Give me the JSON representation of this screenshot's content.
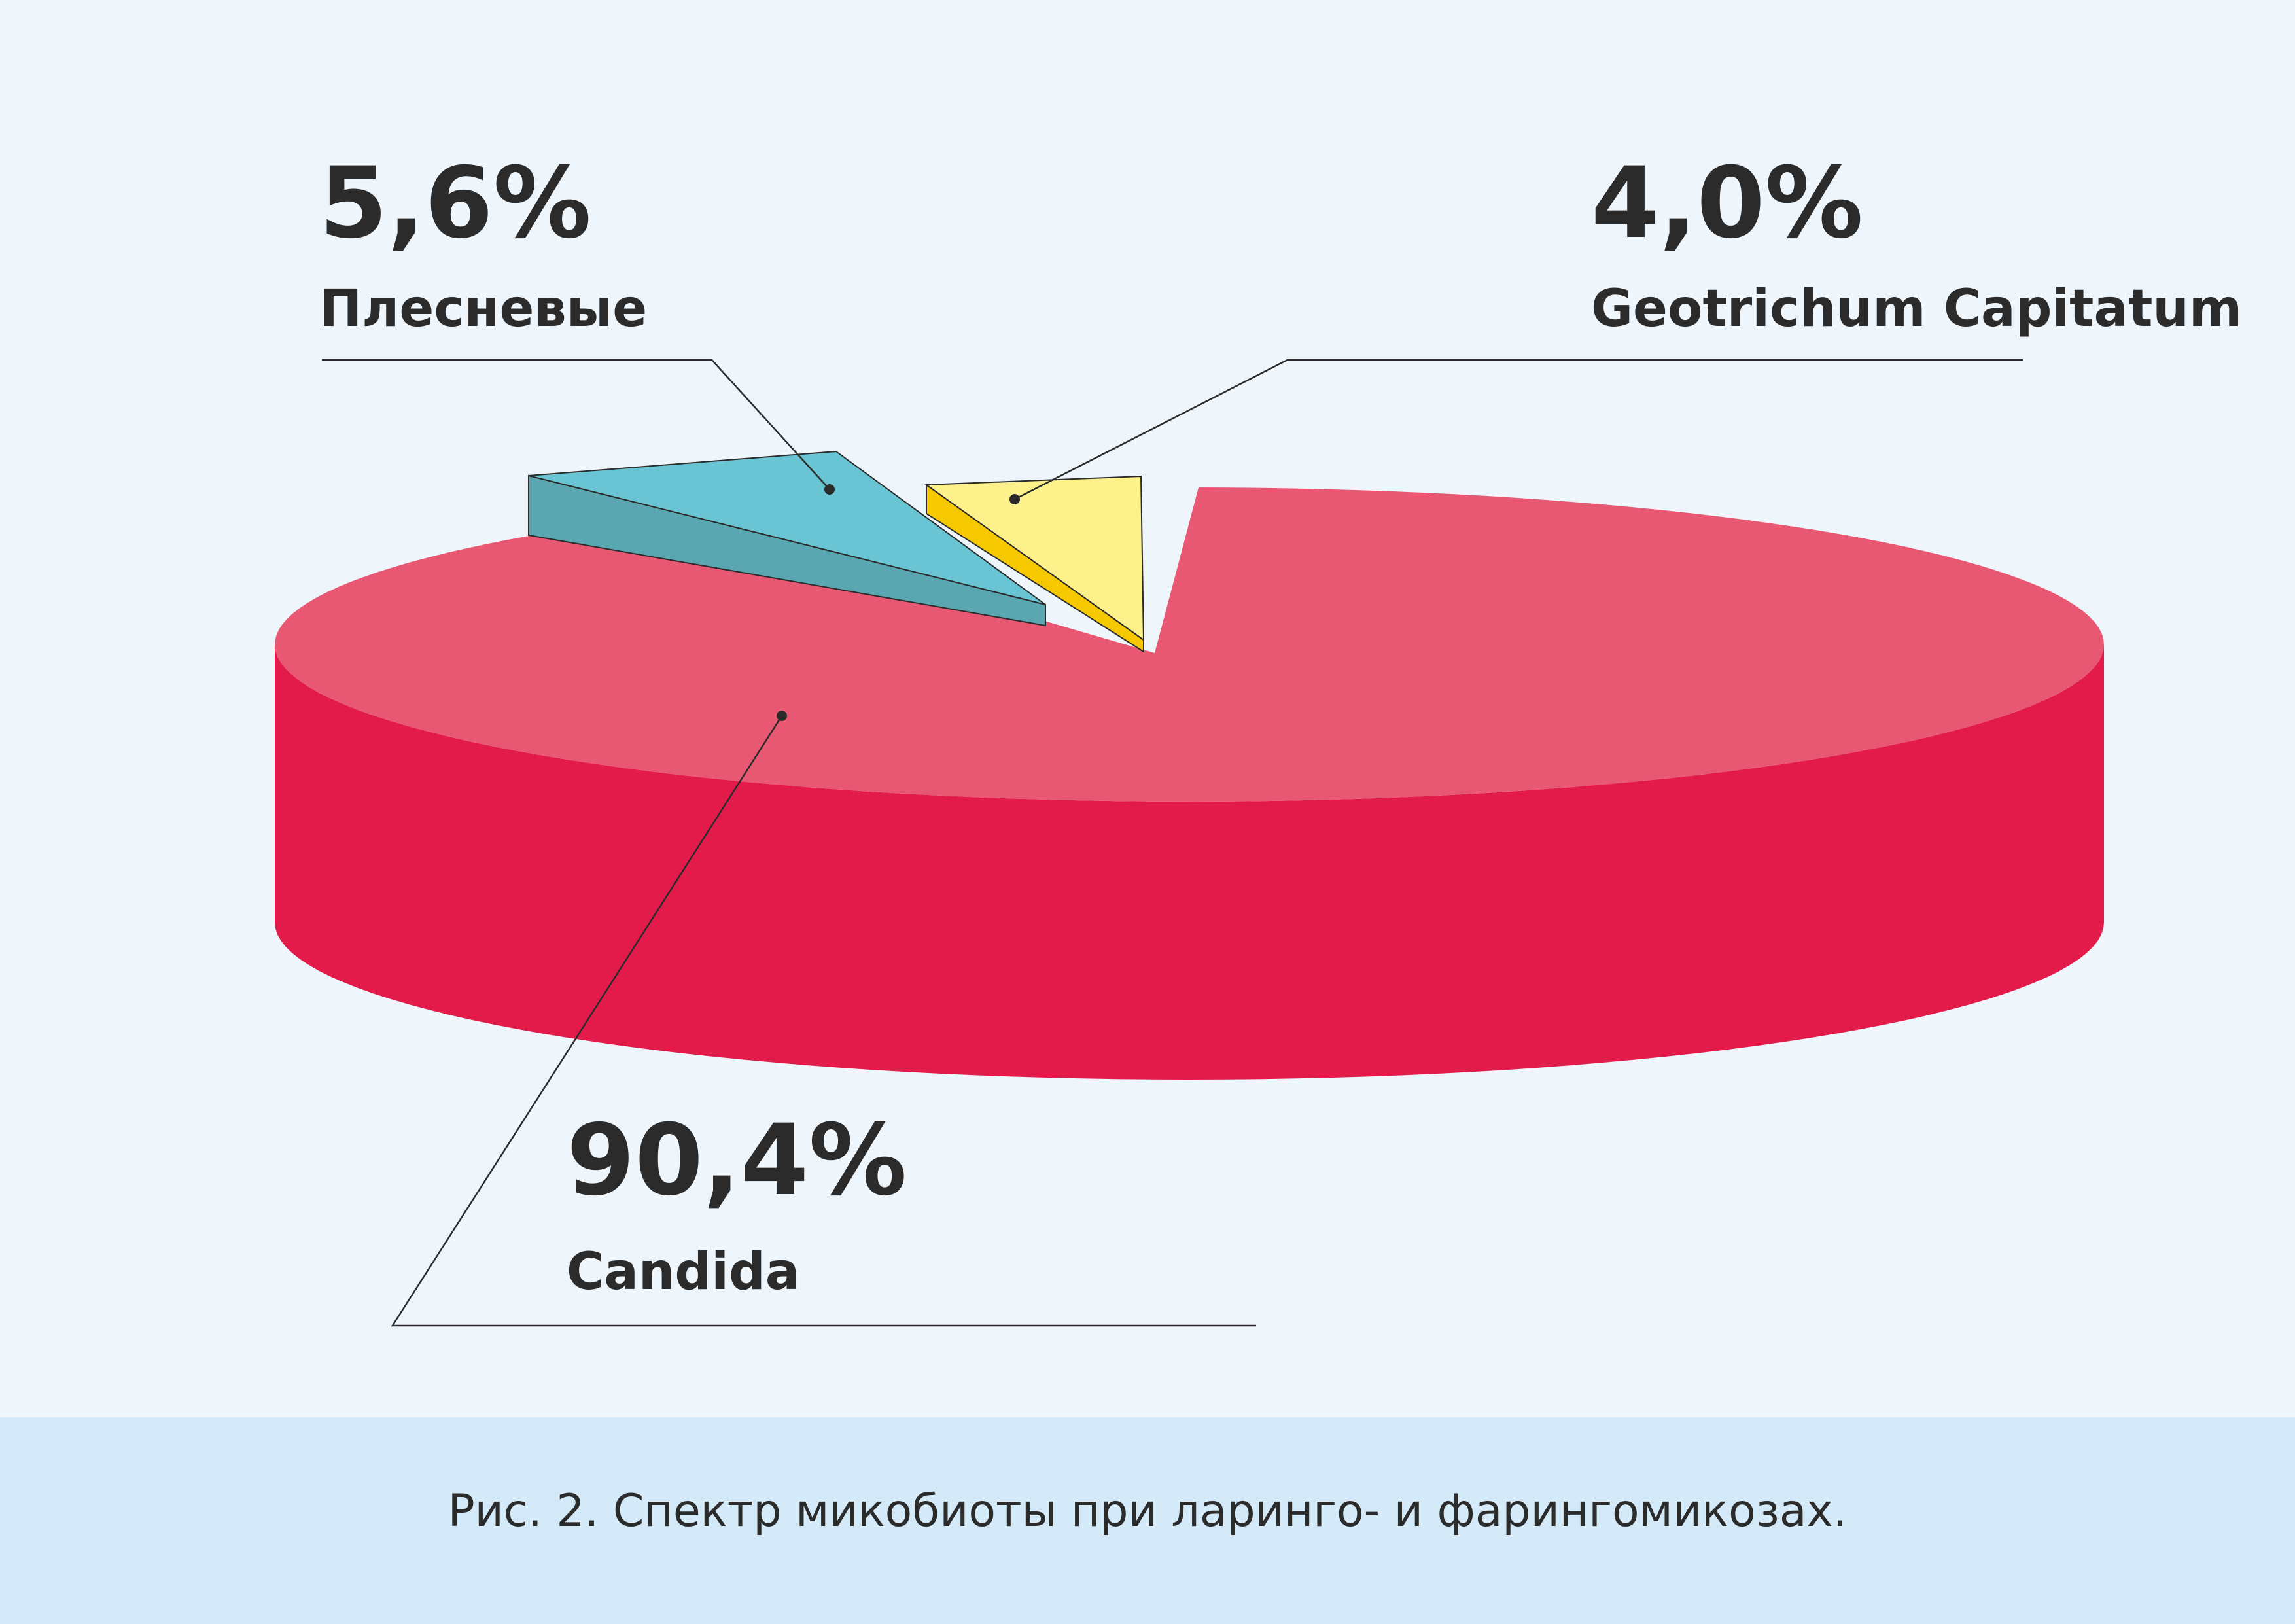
{
  "chart_data": {
    "type": "pie",
    "style": "3d-exploded",
    "categories": [
      "Candida",
      "Плесневые",
      "Geotrichum Capitatum"
    ],
    "values": [
      90.4,
      5.6,
      4.0
    ],
    "data_labels": [
      "90,4%",
      "5,6%",
      "4,0%"
    ],
    "colors": {
      "Candida": "#e85872",
      "Плесневые": "#69c5d3",
      "Geotrichum Capitatum": "#fcf18a"
    },
    "side_colors": {
      "Candida": "#e31b4b",
      "Плесневые": "#5aa7b2",
      "Geotrichum Capitatum": "#f6c800"
    },
    "title": "",
    "legend": "none"
  },
  "caption": "Рис. 2. Спектр микобиоты при ларинго- и фарингомикозах.",
  "colors": {
    "background": "#eef6fc",
    "caption_band": "#d4eaf8",
    "text": "#2b2b2b",
    "leader_line": "#2b2b2b"
  }
}
